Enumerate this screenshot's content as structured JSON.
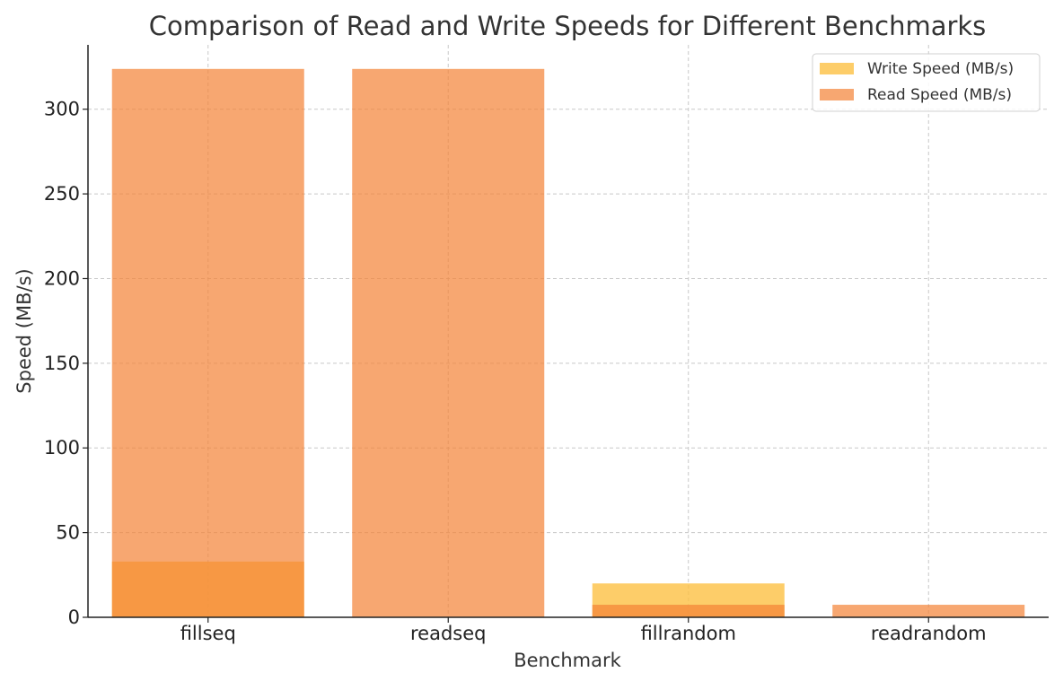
{
  "chart_data": {
    "type": "bar",
    "title": "Comparison of Read and Write Speeds for Different Benchmarks",
    "xlabel": "Benchmark",
    "ylabel": "Speed (MB/s)",
    "categories": [
      "fillseq",
      "readseq",
      "fillrandom",
      "readrandom"
    ],
    "series": [
      {
        "name": "Write Speed (MB/s)",
        "values": [
          32.9,
          0,
          20.0,
          0
        ],
        "color": "#fdc143",
        "opacity": 0.8
      },
      {
        "name": "Read Speed (MB/s)",
        "values": [
          323.8,
          323.8,
          7.4,
          7.4
        ],
        "color": "#f48234",
        "opacity": 0.7
      }
    ],
    "ylim": [
      0,
      338
    ],
    "yticks": [
      0,
      50,
      100,
      150,
      200,
      250,
      300
    ],
    "grid": true,
    "legend_position": "top-right"
  }
}
